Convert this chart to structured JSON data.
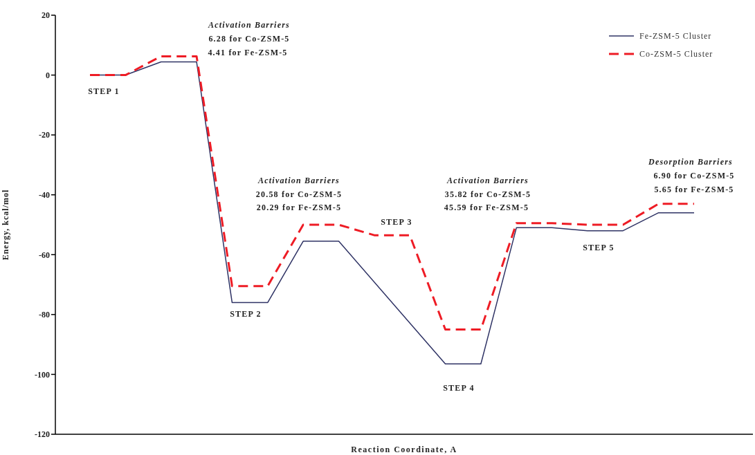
{
  "chart_data": {
    "type": "line",
    "xlabel": "Reaction Coordinate, A",
    "ylabel": "Energy, kcal/mol",
    "categories": [
      null,
      null,
      null,
      null,
      null,
      null,
      null,
      null,
      null,
      null,
      null,
      null,
      null,
      null,
      null,
      null,
      null,
      null
    ],
    "series": [
      {
        "name": "Fe-ZSM-5 Cluster",
        "color": "#2e3264",
        "line_style": "solid",
        "values": [
          0,
          0,
          4.41,
          4.41,
          -76,
          -76,
          -55.5,
          -55.5,
          null,
          null,
          -96.5,
          -96.5,
          -51,
          -51,
          -52,
          -52,
          -46,
          -46
        ]
      },
      {
        "name": "Co-ZSM-5 Cluster",
        "color": "#ee1c25",
        "line_style": "dashed",
        "values": [
          0,
          0,
          6.28,
          6.28,
          -70.5,
          -70.5,
          -50,
          -50,
          -53.5,
          -53.5,
          -85,
          -85,
          -49.5,
          -49.5,
          -50,
          -50,
          -43,
          -43
        ]
      }
    ],
    "ylim": [
      -120,
      20
    ],
    "yticks": [
      -120,
      -100,
      -80,
      -60,
      -40,
      -20,
      0,
      20
    ],
    "grid": false,
    "legend": "top right",
    "tick_labels": "y",
    "marker": "none",
    "annotations": [
      "Activation Barriers",
      "6.28 for Co-ZSM-5",
      "4.41 for Fe-ZSM-5",
      "STEP 1",
      "Activation Barriers",
      "20.58 for Co-ZSM-5",
      "20.29 for Fe-ZSM-5",
      "STEP 2",
      "STEP 3",
      "Activation Barriers",
      "35.82 for Co-ZSM-5",
      "45.59 for Fe-ZSM-5",
      "Desorption Barriers",
      "6.90 for Co-ZSM-5",
      "5.65 for Fe-ZSM-5",
      "STEP 4",
      "STEP 5"
    ]
  }
}
